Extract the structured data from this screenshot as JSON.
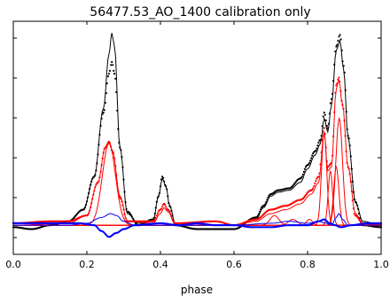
{
  "chart_data": {
    "type": "line",
    "title": "56477.53_AO_1400 calibration only",
    "xlabel": "phase",
    "ylabel": "",
    "xlim": [
      0.0,
      1.0
    ],
    "x_ticks": [
      "0.0",
      "0.2",
      "0.4",
      "0.6",
      "0.8",
      "1.0"
    ],
    "y_tick_count": 6,
    "y_tick_labels_shown": false,
    "grid": false,
    "legend": "none",
    "series": [
      {
        "role": "total-intensity-model",
        "style": "line",
        "color": "#000000",
        "points": [
          [
            0.0,
            0.0
          ],
          [
            0.1,
            0.0
          ],
          [
            0.15,
            0.02
          ],
          [
            0.19,
            0.08
          ],
          [
            0.22,
            0.25
          ],
          [
            0.245,
            0.6
          ],
          [
            0.26,
            0.88
          ],
          [
            0.268,
            0.99
          ],
          [
            0.275,
            0.92
          ],
          [
            0.29,
            0.4
          ],
          [
            0.31,
            0.06
          ],
          [
            0.34,
            0.01
          ],
          [
            0.38,
            0.02
          ],
          [
            0.395,
            0.15
          ],
          [
            0.405,
            0.24
          ],
          [
            0.415,
            0.2
          ],
          [
            0.425,
            0.1
          ],
          [
            0.44,
            0.01
          ],
          [
            0.5,
            0.0
          ],
          [
            0.6,
            0.0
          ],
          [
            0.66,
            0.03
          ],
          [
            0.68,
            0.09
          ],
          [
            0.7,
            0.15
          ],
          [
            0.72,
            0.17
          ],
          [
            0.75,
            0.18
          ],
          [
            0.78,
            0.22
          ],
          [
            0.8,
            0.29
          ],
          [
            0.82,
            0.36
          ],
          [
            0.835,
            0.42
          ],
          [
            0.845,
            0.55
          ],
          [
            0.855,
            0.48
          ],
          [
            0.865,
            0.62
          ],
          [
            0.878,
            0.9
          ],
          [
            0.888,
            0.95
          ],
          [
            0.898,
            0.8
          ],
          [
            0.91,
            0.45
          ],
          [
            0.93,
            0.12
          ],
          [
            0.95,
            0.02
          ],
          [
            1.0,
            0.0
          ]
        ]
      },
      {
        "role": "total-intensity-data",
        "style": "dots",
        "color": "#000000",
        "points": [
          [
            0.0,
            -0.01
          ],
          [
            0.05,
            -0.02
          ],
          [
            0.1,
            0.0
          ],
          [
            0.15,
            0.02
          ],
          [
            0.19,
            0.08
          ],
          [
            0.22,
            0.25
          ],
          [
            0.245,
            0.58
          ],
          [
            0.26,
            0.78
          ],
          [
            0.268,
            0.84
          ],
          [
            0.275,
            0.78
          ],
          [
            0.29,
            0.4
          ],
          [
            0.31,
            0.07
          ],
          [
            0.34,
            0.0
          ],
          [
            0.38,
            0.03
          ],
          [
            0.395,
            0.15
          ],
          [
            0.405,
            0.25
          ],
          [
            0.415,
            0.2
          ],
          [
            0.425,
            0.1
          ],
          [
            0.44,
            0.0
          ],
          [
            0.5,
            -0.02
          ],
          [
            0.6,
            -0.02
          ],
          [
            0.66,
            0.04
          ],
          [
            0.68,
            0.1
          ],
          [
            0.7,
            0.16
          ],
          [
            0.72,
            0.18
          ],
          [
            0.75,
            0.19
          ],
          [
            0.78,
            0.24
          ],
          [
            0.8,
            0.31
          ],
          [
            0.82,
            0.38
          ],
          [
            0.835,
            0.44
          ],
          [
            0.845,
            0.58
          ],
          [
            0.855,
            0.5
          ],
          [
            0.865,
            0.65
          ],
          [
            0.878,
            0.92
          ],
          [
            0.888,
            0.98
          ],
          [
            0.898,
            0.82
          ],
          [
            0.91,
            0.46
          ],
          [
            0.93,
            0.12
          ],
          [
            0.95,
            0.0
          ],
          [
            1.0,
            -0.01
          ]
        ]
      },
      {
        "role": "linear-polarization-model",
        "style": "line",
        "color": "#ff0000",
        "points": [
          [
            0.0,
            0.0
          ],
          [
            0.15,
            0.01
          ],
          [
            0.2,
            0.05
          ],
          [
            0.23,
            0.22
          ],
          [
            0.25,
            0.4
          ],
          [
            0.26,
            0.43
          ],
          [
            0.27,
            0.38
          ],
          [
            0.29,
            0.15
          ],
          [
            0.31,
            0.02
          ],
          [
            0.38,
            0.01
          ],
          [
            0.4,
            0.06
          ],
          [
            0.41,
            0.09
          ],
          [
            0.42,
            0.07
          ],
          [
            0.44,
            0.01
          ],
          [
            0.6,
            0.0
          ],
          [
            0.66,
            0.02
          ],
          [
            0.7,
            0.06
          ],
          [
            0.74,
            0.08
          ],
          [
            0.78,
            0.11
          ],
          [
            0.81,
            0.16
          ],
          [
            0.83,
            0.22
          ],
          [
            0.845,
            0.48
          ],
          [
            0.855,
            0.28
          ],
          [
            0.865,
            0.3
          ],
          [
            0.878,
            0.7
          ],
          [
            0.885,
            0.75
          ],
          [
            0.895,
            0.62
          ],
          [
            0.91,
            0.3
          ],
          [
            0.93,
            0.06
          ],
          [
            0.95,
            0.01
          ],
          [
            1.0,
            0.0
          ]
        ]
      },
      {
        "role": "linear-polarization-data",
        "style": "dots",
        "color": "#ff0000",
        "points": [
          [
            0.0,
            0.01
          ],
          [
            0.1,
            0.02
          ],
          [
            0.15,
            0.02
          ],
          [
            0.2,
            0.05
          ],
          [
            0.23,
            0.22
          ],
          [
            0.25,
            0.4
          ],
          [
            0.26,
            0.43
          ],
          [
            0.27,
            0.38
          ],
          [
            0.29,
            0.14
          ],
          [
            0.31,
            0.02
          ],
          [
            0.38,
            0.02
          ],
          [
            0.4,
            0.08
          ],
          [
            0.41,
            0.11
          ],
          [
            0.42,
            0.08
          ],
          [
            0.44,
            0.01
          ],
          [
            0.55,
            0.02
          ],
          [
            0.6,
            0.0
          ],
          [
            0.66,
            0.03
          ],
          [
            0.7,
            0.08
          ],
          [
            0.74,
            0.1
          ],
          [
            0.78,
            0.13
          ],
          [
            0.81,
            0.18
          ],
          [
            0.83,
            0.25
          ],
          [
            0.845,
            0.5
          ],
          [
            0.855,
            0.3
          ],
          [
            0.865,
            0.32
          ],
          [
            0.878,
            0.72
          ],
          [
            0.885,
            0.76
          ],
          [
            0.895,
            0.62
          ],
          [
            0.91,
            0.3
          ],
          [
            0.93,
            0.05
          ],
          [
            0.95,
            0.01
          ],
          [
            1.0,
            0.0
          ]
        ]
      },
      {
        "role": "gaussian-component",
        "style": "line",
        "color": "#ff0000",
        "center": 0.26,
        "height": 0.42,
        "width": 0.018
      },
      {
        "role": "gaussian-component",
        "style": "line",
        "color": "#ff0000",
        "center": 0.71,
        "height": 0.05,
        "width": 0.012
      },
      {
        "role": "gaussian-component",
        "style": "line",
        "color": "#ff0000",
        "center": 0.76,
        "height": 0.03,
        "width": 0.012
      },
      {
        "role": "gaussian-component",
        "style": "line",
        "color": "#ff0000",
        "center": 0.805,
        "height": 0.03,
        "width": 0.008
      },
      {
        "role": "gaussian-component",
        "style": "line",
        "color": "#ff0000",
        "center": 0.845,
        "height": 0.48,
        "width": 0.007
      },
      {
        "role": "gaussian-component",
        "style": "line",
        "color": "#ff0000",
        "center": 0.862,
        "height": 0.28,
        "width": 0.006
      },
      {
        "role": "gaussian-component",
        "style": "line",
        "color": "#ff0000",
        "center": 0.878,
        "height": 0.3,
        "width": 0.007
      },
      {
        "role": "gaussian-component",
        "style": "line",
        "color": "#ff0000",
        "center": 0.886,
        "height": 0.55,
        "width": 0.009
      },
      {
        "role": "circular-polarization-model",
        "style": "line",
        "color": "#0000ff",
        "points": [
          [
            0.0,
            0.0
          ],
          [
            0.15,
            0.0
          ],
          [
            0.2,
            0.01
          ],
          [
            0.24,
            0.04
          ],
          [
            0.265,
            0.06
          ],
          [
            0.28,
            0.05
          ],
          [
            0.3,
            0.02
          ],
          [
            0.33,
            0.0
          ],
          [
            0.6,
            0.0
          ],
          [
            0.7,
            0.01
          ],
          [
            0.75,
            0.02
          ],
          [
            0.8,
            0.01
          ],
          [
            0.83,
            0.02
          ],
          [
            0.85,
            0.01
          ],
          [
            0.865,
            0.0
          ],
          [
            0.878,
            0.04
          ],
          [
            0.885,
            0.06
          ],
          [
            0.895,
            0.03
          ],
          [
            0.91,
            0.0
          ],
          [
            1.0,
            0.0
          ]
        ]
      },
      {
        "role": "circular-polarization-data",
        "style": "dots",
        "color": "#0000ff",
        "points": [
          [
            0.0,
            0.01
          ],
          [
            0.1,
            0.01
          ],
          [
            0.18,
            0.01
          ],
          [
            0.22,
            0.0
          ],
          [
            0.24,
            -0.03
          ],
          [
            0.26,
            -0.06
          ],
          [
            0.28,
            -0.04
          ],
          [
            0.3,
            -0.02
          ],
          [
            0.33,
            0.0
          ],
          [
            0.4,
            0.01
          ],
          [
            0.45,
            0.0
          ],
          [
            0.5,
            0.01
          ],
          [
            0.55,
            0.0
          ],
          [
            0.6,
            0.0
          ],
          [
            0.65,
            -0.01
          ],
          [
            0.7,
            -0.01
          ],
          [
            0.75,
            0.0
          ],
          [
            0.8,
            0.0
          ],
          [
            0.83,
            0.02
          ],
          [
            0.845,
            0.03
          ],
          [
            0.86,
            0.01
          ],
          [
            0.875,
            0.0
          ],
          [
            0.89,
            -0.01
          ],
          [
            0.92,
            0.0
          ],
          [
            0.96,
            0.01
          ],
          [
            1.0,
            0.01
          ]
        ]
      }
    ]
  }
}
